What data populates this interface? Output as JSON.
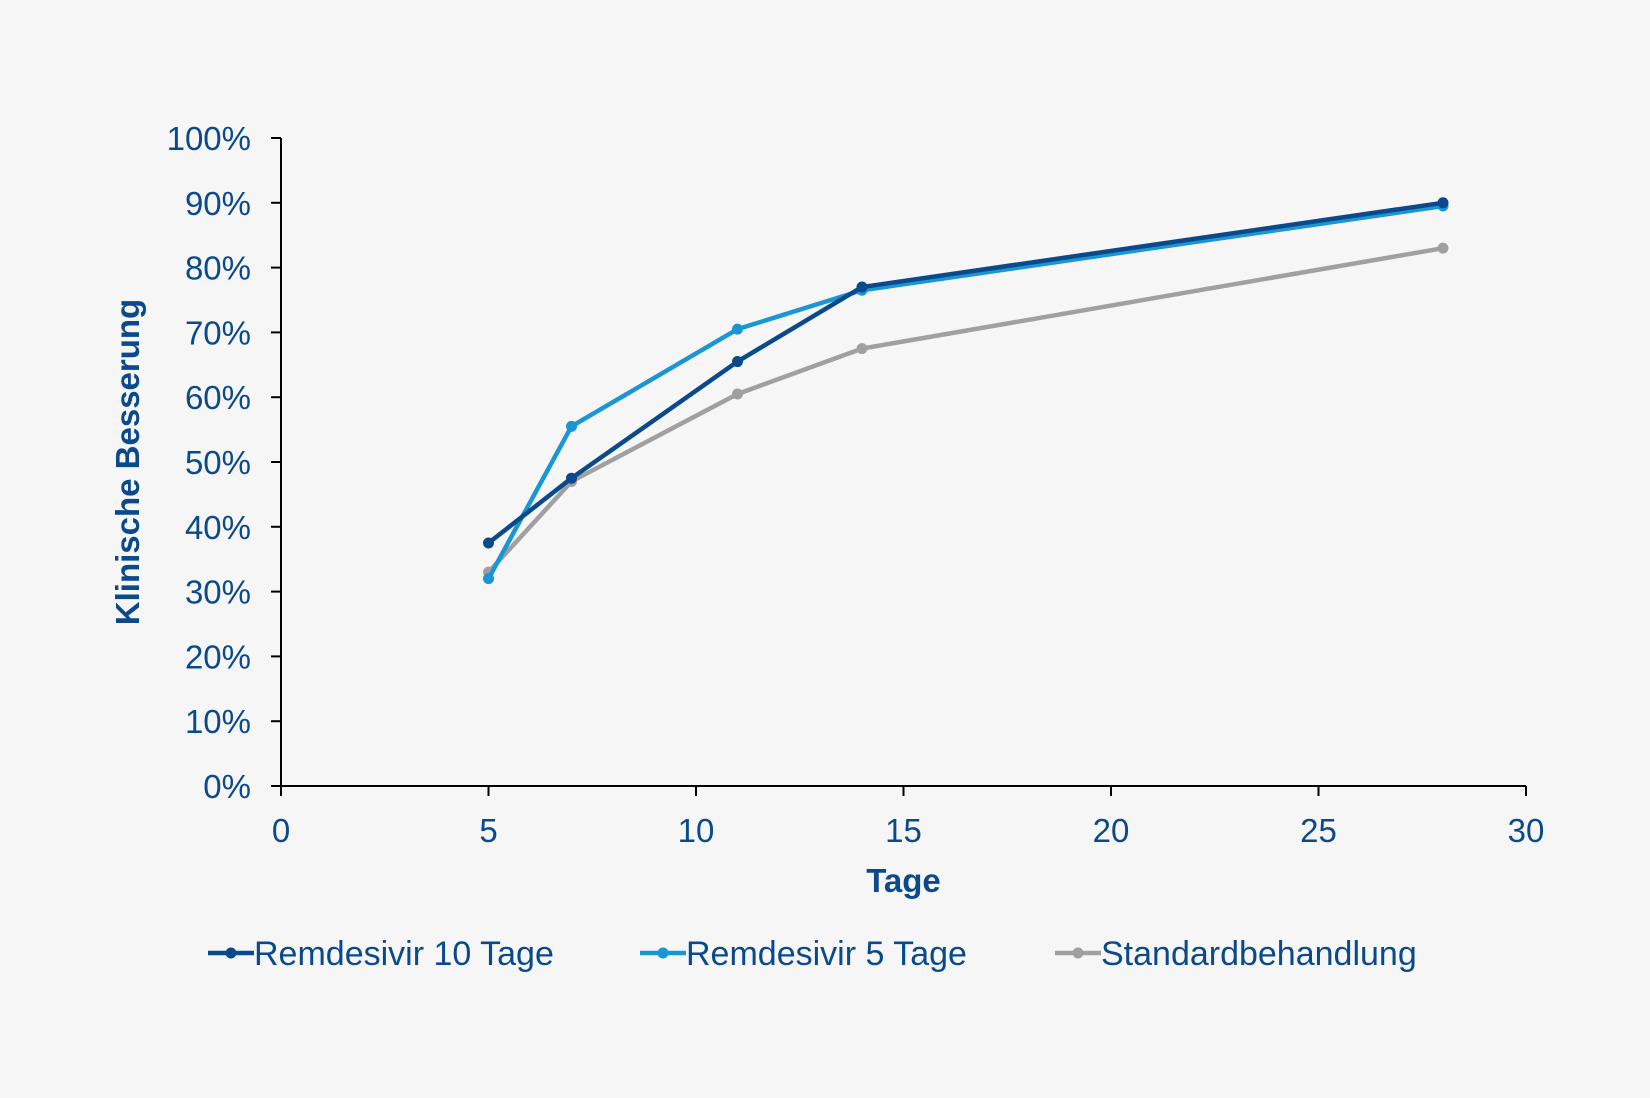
{
  "chart_data": {
    "type": "line",
    "title": "",
    "xlabel": "Tage",
    "ylabel": "Klinische Besserung",
    "xlim": [
      0,
      30
    ],
    "ylim": [
      0,
      100
    ],
    "x_ticks": [
      0,
      5,
      10,
      15,
      20,
      25,
      30
    ],
    "y_ticks": [
      0,
      10,
      20,
      30,
      40,
      50,
      60,
      70,
      80,
      90,
      100
    ],
    "y_tick_suffix": "%",
    "grid": false,
    "legend_position": "bottom",
    "series": [
      {
        "name": "Remdesivir 10 Tage",
        "color": "#0a4a8c",
        "x": [
          5,
          7,
          11,
          14,
          28
        ],
        "y": [
          37.5,
          47.5,
          65.5,
          77,
          90
        ]
      },
      {
        "name": "Remdesivir 5 Tage",
        "color": "#1a96d4",
        "x": [
          5,
          7,
          11,
          14,
          28
        ],
        "y": [
          32,
          55.5,
          70.5,
          76.5,
          89.5
        ]
      },
      {
        "name": "Standardbehandlung",
        "color": "#a0a0a0",
        "x": [
          5,
          7,
          11,
          14,
          28
        ],
        "y": [
          33,
          47,
          60.5,
          67.5,
          83
        ]
      }
    ],
    "text_color": "#0a4a8c"
  }
}
